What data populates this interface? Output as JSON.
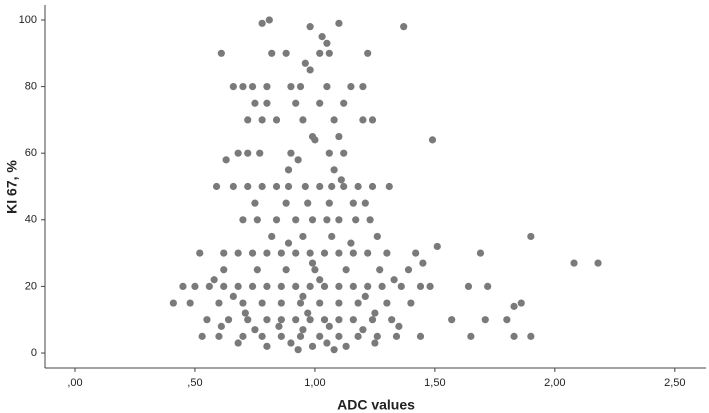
{
  "chart_data": {
    "type": "scatter",
    "x_label": "ADC values",
    "y_label": "KI 67, %",
    "color": "#7a7a7a",
    "xlim": [
      -0.125,
      2.63
    ],
    "ylim": [
      -4.5,
      104.5
    ],
    "xticks": [
      {
        "value": 0,
        "label": ",00"
      },
      {
        "value": 0.5,
        "label": ",50"
      },
      {
        "value": 1,
        "label": "1,00"
      },
      {
        "value": 1.5,
        "label": "1,50"
      },
      {
        "value": 2,
        "label": "2,00"
      },
      {
        "value": 2.5,
        "label": "2,50"
      }
    ],
    "yticks": [
      0,
      20,
      40,
      60,
      80,
      100
    ],
    "x": [
      0.81,
      0.78,
      1.1,
      0.98,
      1.37,
      1.03,
      1.05,
      0.61,
      0.82,
      0.88,
      1.02,
      1.06,
      1.22,
      0.96,
      0.98,
      0.66,
      0.7,
      0.74,
      0.8,
      0.9,
      0.94,
      1.05,
      1.15,
      1.2,
      0.75,
      0.8,
      0.92,
      1.02,
      1.12,
      0.72,
      0.78,
      0.84,
      0.95,
      1.08,
      1.2,
      1.24,
      0.99,
      1.1,
      1.0,
      1.49,
      0.68,
      0.72,
      0.77,
      0.9,
      1.06,
      1.12,
      0.63,
      0.93,
      0.89,
      1.08,
      1.11,
      0.59,
      0.66,
      0.72,
      0.78,
      0.84,
      0.89,
      0.96,
      1.02,
      1.07,
      1.12,
      1.18,
      1.24,
      1.31,
      0.75,
      0.88,
      0.97,
      1.06,
      1.16,
      1.21,
      0.7,
      0.76,
      0.84,
      0.92,
      0.99,
      1.05,
      1.1,
      1.17,
      1.23,
      0.82,
      0.95,
      1.07,
      1.26,
      1.9,
      0.89,
      1.15,
      1.51,
      0.52,
      0.62,
      0.68,
      0.74,
      0.8,
      0.86,
      0.92,
      0.98,
      1.04,
      1.1,
      1.16,
      1.22,
      1.3,
      1.42,
      1.69,
      0.99,
      1.45,
      2.08,
      2.18,
      0.62,
      0.76,
      0.88,
      1.0,
      1.13,
      1.27,
      1.39,
      0.58,
      1.02,
      1.33,
      0.45,
      0.5,
      0.56,
      0.62,
      0.68,
      0.74,
      0.8,
      0.86,
      0.92,
      0.98,
      1.04,
      1.1,
      1.16,
      1.22,
      1.28,
      1.36,
      1.44,
      1.48,
      1.64,
      1.72,
      0.66,
      0.95,
      1.21,
      0.41,
      0.48,
      0.6,
      0.7,
      0.78,
      0.86,
      0.94,
      1.02,
      1.1,
      1.18,
      1.3,
      1.4,
      1.86,
      1.83,
      0.71,
      0.97,
      1.25,
      0.55,
      0.64,
      0.72,
      0.8,
      0.86,
      0.92,
      0.98,
      1.04,
      1.1,
      1.16,
      1.24,
      1.32,
      1.57,
      1.71,
      1.8,
      0.61,
      0.85,
      1.06,
      1.35,
      0.75,
      0.95,
      1.2,
      0.53,
      0.6,
      0.7,
      0.78,
      0.86,
      0.94,
      1.02,
      1.1,
      1.18,
      1.26,
      1.34,
      1.44,
      1.65,
      1.83,
      1.9,
      0.68,
      0.9,
      1.05,
      1.25,
      0.8,
      0.99,
      1.13,
      0.93,
      1.08
    ],
    "values": [
      100,
      99,
      99,
      98,
      98,
      95,
      93,
      90,
      90,
      90,
      90,
      90,
      90,
      87,
      85,
      80,
      80,
      80,
      80,
      80,
      80,
      80,
      80,
      80,
      75,
      75,
      75,
      75,
      75,
      70,
      70,
      70,
      70,
      70,
      70,
      70,
      65,
      65,
      64,
      64,
      60,
      60,
      60,
      60,
      60,
      60,
      58,
      58,
      55,
      55,
      52,
      50,
      50,
      50,
      50,
      50,
      50,
      50,
      50,
      50,
      50,
      50,
      50,
      50,
      45,
      45,
      45,
      45,
      45,
      45,
      40,
      40,
      40,
      40,
      40,
      40,
      40,
      40,
      40,
      35,
      35,
      35,
      35,
      35,
      33,
      33,
      32,
      30,
      30,
      30,
      30,
      30,
      30,
      30,
      30,
      30,
      30,
      30,
      30,
      30,
      30,
      30,
      27,
      27,
      27,
      27,
      25,
      25,
      25,
      25,
      25,
      25,
      25,
      22,
      22,
      22,
      20,
      20,
      20,
      20,
      20,
      20,
      20,
      20,
      20,
      20,
      20,
      20,
      20,
      20,
      20,
      20,
      20,
      20,
      20,
      20,
      17,
      17,
      17,
      15,
      15,
      15,
      15,
      15,
      15,
      15,
      15,
      15,
      15,
      15,
      15,
      15,
      14,
      12,
      12,
      12,
      10,
      10,
      10,
      10,
      10,
      10,
      10,
      10,
      10,
      10,
      10,
      10,
      10,
      10,
      10,
      8,
      8,
      8,
      8,
      7,
      7,
      7,
      5,
      5,
      5,
      5,
      5,
      5,
      5,
      5,
      5,
      5,
      5,
      5,
      5,
      5,
      5,
      3,
      3,
      3,
      3,
      2,
      2,
      2,
      1,
      1
    ]
  }
}
